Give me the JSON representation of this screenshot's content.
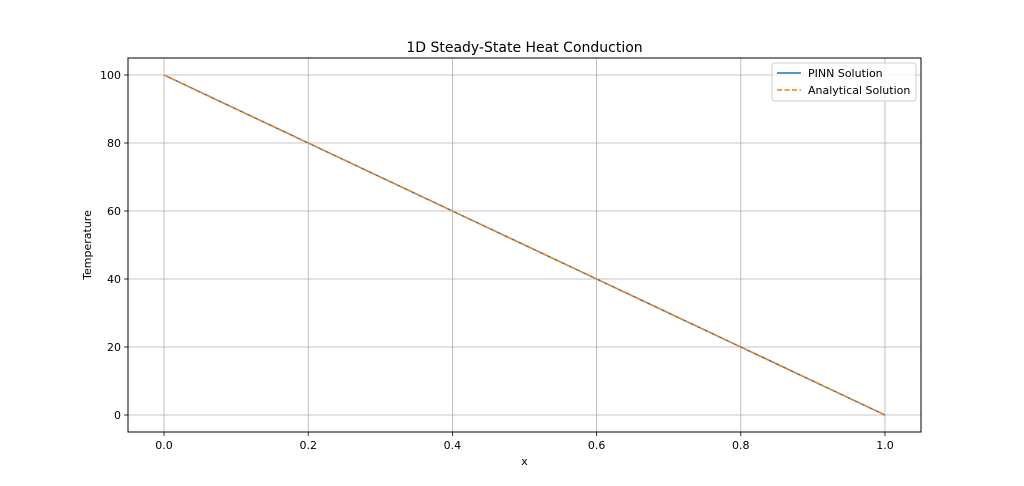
{
  "chart_data": {
    "type": "line",
    "title": "1D Steady-State Heat Conduction",
    "xlabel": "x",
    "ylabel": "Temperature",
    "xlim": [
      -0.05,
      1.05
    ],
    "ylim": [
      -5,
      105
    ],
    "x_ticks": [
      0.0,
      0.2,
      0.4,
      0.6,
      0.8,
      1.0
    ],
    "x_tick_labels": [
      "0.0",
      "0.2",
      "0.4",
      "0.6",
      "0.8",
      "1.0"
    ],
    "y_ticks": [
      0,
      20,
      40,
      60,
      80,
      100
    ],
    "y_tick_labels": [
      "0",
      "20",
      "40",
      "60",
      "80",
      "100"
    ],
    "grid": true,
    "legend_position": "top-right",
    "series": [
      {
        "name": "PINN Solution",
        "style": "solid",
        "color": "#1f77b4",
        "x": [
          0.0,
          0.2,
          0.4,
          0.6,
          0.8,
          1.0
        ],
        "y": [
          100,
          80,
          60,
          40,
          20,
          0
        ]
      },
      {
        "name": "Analytical Solution",
        "style": "dashed",
        "color": "#ff7f0e",
        "x": [
          0.0,
          0.2,
          0.4,
          0.6,
          0.8,
          1.0
        ],
        "y": [
          100,
          80,
          60,
          40,
          20,
          0
        ]
      }
    ]
  }
}
